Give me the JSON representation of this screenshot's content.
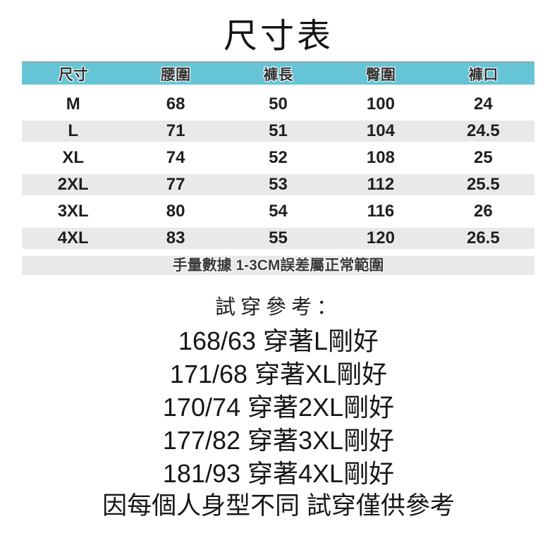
{
  "title": "尺寸表",
  "size_table": {
    "columns": [
      "尺寸",
      "腰圍",
      "褲長",
      "臀圍",
      "褲口"
    ],
    "rows": [
      {
        "size": "M",
        "waist": "68",
        "length": "50",
        "hip": "100",
        "opening": "24"
      },
      {
        "size": "L",
        "waist": "71",
        "length": "51",
        "hip": "104",
        "opening": "24.5"
      },
      {
        "size": "XL",
        "waist": "74",
        "length": "52",
        "hip": "108",
        "opening": "25"
      },
      {
        "size": "2XL",
        "waist": "77",
        "length": "53",
        "hip": "112",
        "opening": "25.5"
      },
      {
        "size": "3XL",
        "waist": "80",
        "length": "54",
        "hip": "116",
        "opening": "26"
      },
      {
        "size": "4XL",
        "waist": "83",
        "length": "55",
        "hip": "120",
        "opening": "26.5"
      }
    ],
    "note": "手量數據 1-3CM誤差屬正常範圍"
  },
  "fit_reference": {
    "heading": "試穿參考：",
    "lines": [
      "168/63 穿著L剛好",
      "171/68 穿著XL剛好",
      "170/74 穿著2XL剛好",
      "177/82 穿著3XL剛好",
      "181/93 穿著4XL剛好"
    ],
    "disclaimer": "因每個人身型不同 試穿僅供參考"
  },
  "colors": {
    "header_bg": "#65C4D6",
    "header_border": "#9AA6A9",
    "row_alt_bg": "#E9E9E9",
    "note_bg": "#E9E9E9",
    "text_dark": "#1C1C1C"
  }
}
